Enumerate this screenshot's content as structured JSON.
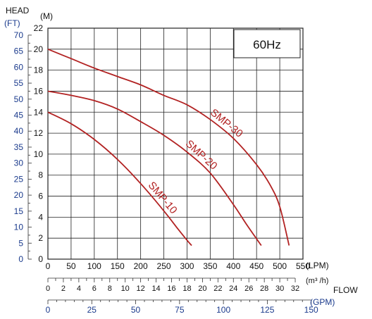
{
  "head_label": "HEAD",
  "ft_unit": "(FT)",
  "m_unit": "(M)",
  "freq_label": "60Hz",
  "flow_label": "FLOW",
  "lpm_unit": "(LPM)",
  "m3h_unit": "(m³ /h)",
  "gpm_unit": "(GPM)",
  "colors": {
    "curve": "#b22222",
    "m_ticks": "#111111",
    "ft_ticks": "#1a3a8c",
    "grid": "#222222"
  },
  "chart_data": {
    "type": "line",
    "xlabel": "FLOW",
    "ylabel": "HEAD",
    "xlim": [
      0,
      550
    ],
    "ylim": [
      0,
      22
    ],
    "grid": true,
    "x_ticks": [
      0,
      50,
      100,
      150,
      200,
      250,
      300,
      350,
      400,
      450,
      500,
      550
    ],
    "y_ticks": [
      0,
      2,
      4,
      6,
      8,
      10,
      12,
      14,
      16,
      18,
      20,
      22
    ],
    "ft_ticks": [
      0,
      5,
      10,
      15,
      20,
      25,
      30,
      35,
      40,
      45,
      50,
      55,
      60,
      65,
      70
    ],
    "m3h_ticks": [
      0,
      2,
      4,
      6,
      8,
      10,
      12,
      14,
      16,
      18,
      20,
      22,
      24,
      26,
      28,
      30,
      32
    ],
    "gpm_ticks": [
      0,
      25,
      50,
      75,
      100,
      125,
      150
    ],
    "series": [
      {
        "name": "SMP-10",
        "x": [
          0,
          50,
          100,
          150,
          200,
          250,
          280,
          300,
          310
        ],
        "y": [
          14,
          12.9,
          11.4,
          9.5,
          7.2,
          4.6,
          2.9,
          1.8,
          1.3
        ]
      },
      {
        "name": "SMP-20",
        "x": [
          0,
          50,
          100,
          150,
          200,
          250,
          300,
          350,
          400,
          430,
          460
        ],
        "y": [
          16,
          15.6,
          15.1,
          14.3,
          13.1,
          11.8,
          10.2,
          8.2,
          5.2,
          3.2,
          1.3
        ]
      },
      {
        "name": "SMP-30",
        "x": [
          0,
          50,
          100,
          150,
          200,
          250,
          300,
          350,
          400,
          450,
          480,
          500,
          520
        ],
        "y": [
          20,
          19.1,
          18.2,
          17.4,
          16.6,
          15.6,
          14.7,
          13.3,
          11.5,
          9.0,
          7.0,
          5.0,
          1.3
        ]
      }
    ]
  }
}
